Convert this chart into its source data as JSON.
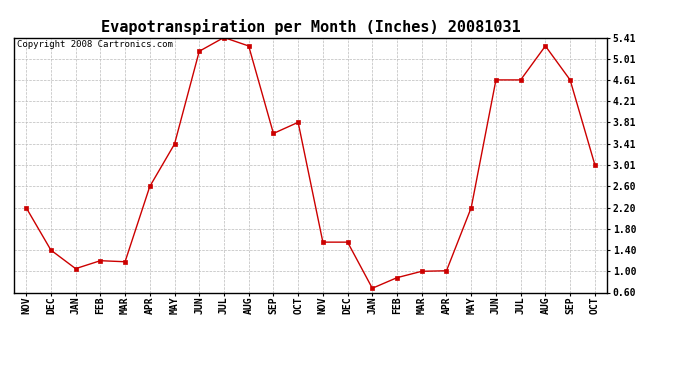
{
  "title": "Evapotranspiration per Month (Inches) 20081031",
  "copyright": "Copyright 2008 Cartronics.com",
  "months": [
    "NOV",
    "DEC",
    "JAN",
    "FEB",
    "MAR",
    "APR",
    "MAY",
    "JUN",
    "JUL",
    "AUG",
    "SEP",
    "OCT",
    "NOV",
    "DEC",
    "JAN",
    "FEB",
    "MAR",
    "APR",
    "MAY",
    "JUN",
    "JUL",
    "AUG",
    "SEP",
    "OCT"
  ],
  "values": [
    2.2,
    1.4,
    1.05,
    1.2,
    1.18,
    2.6,
    3.4,
    5.15,
    5.41,
    5.25,
    3.6,
    3.81,
    1.55,
    1.55,
    0.68,
    0.88,
    1.0,
    1.01,
    2.2,
    4.61,
    4.61,
    5.25,
    4.61,
    3.01
  ],
  "yticks": [
    0.6,
    1.0,
    1.4,
    1.8,
    2.2,
    2.6,
    3.01,
    3.41,
    3.81,
    4.21,
    4.61,
    5.01,
    5.41
  ],
  "ytick_labels": [
    "0.60",
    "1.00",
    "1.40",
    "1.80",
    "2.20",
    "2.60",
    "3.01",
    "3.41",
    "3.81",
    "4.21",
    "4.61",
    "5.01",
    "5.41"
  ],
  "line_color": "#cc0000",
  "marker": "s",
  "marker_size": 2.5,
  "bg_color": "#ffffff",
  "grid_color": "#bbbbbb",
  "ylim": [
    0.6,
    5.41
  ],
  "title_fontsize": 11,
  "tick_fontsize": 7,
  "copyright_fontsize": 6.5
}
